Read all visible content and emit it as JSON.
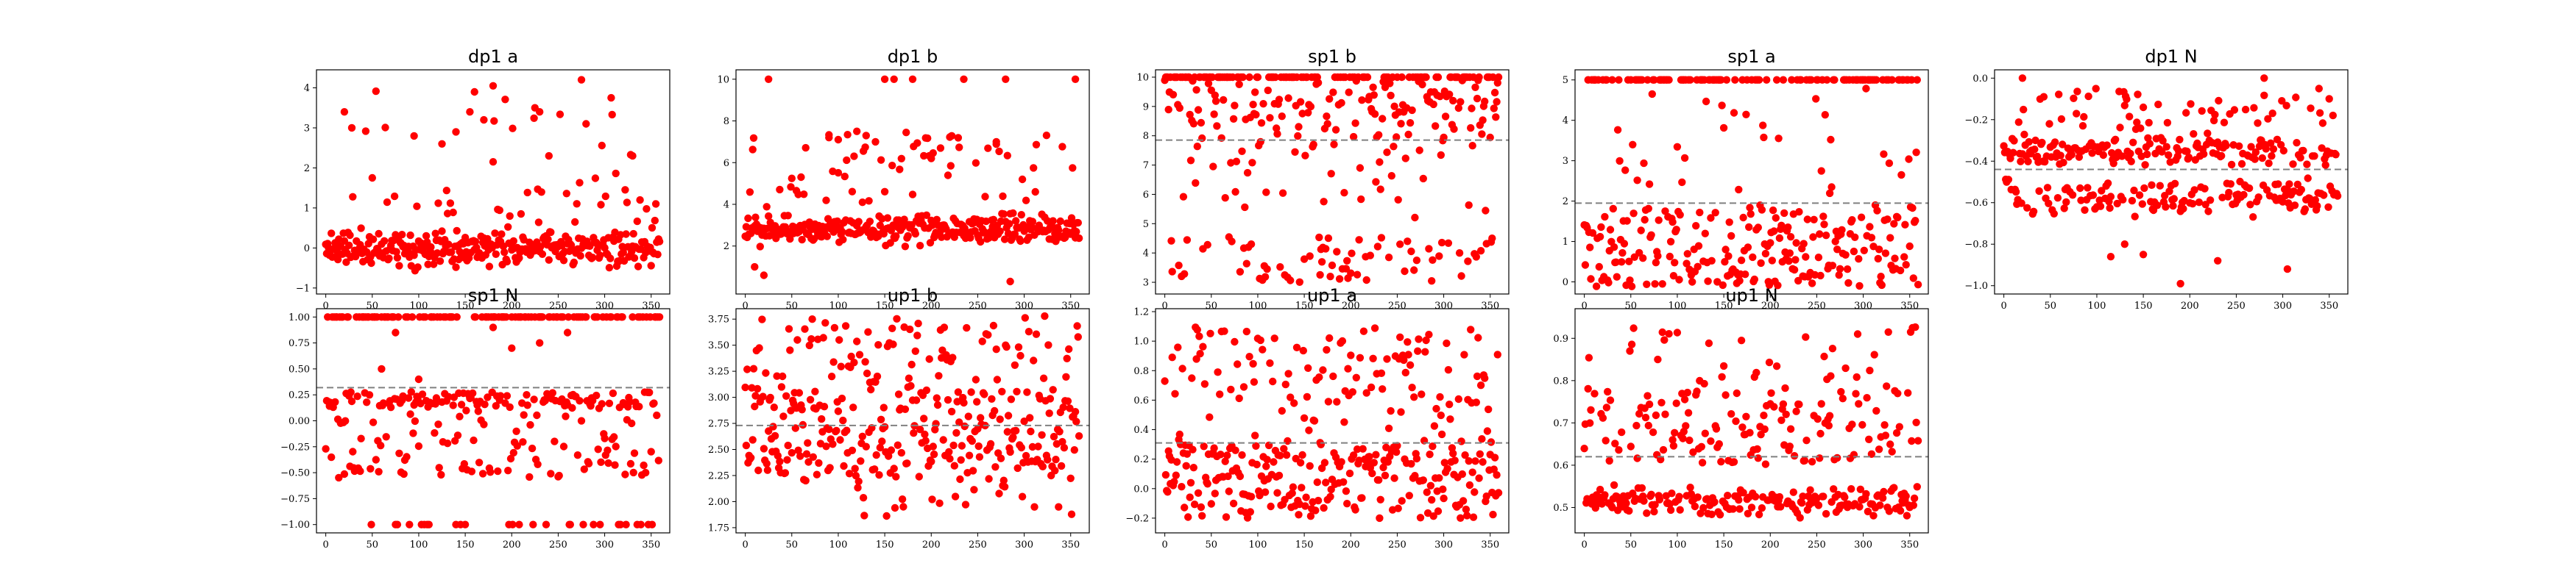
{
  "colors": {
    "points": "#ff0000",
    "refline": "#808080",
    "axis": "#000000"
  },
  "chart_data": [
    {
      "type": "scatter",
      "title": "dp1 a",
      "xlim": [
        -10,
        370
      ],
      "ylim": [
        -1.15,
        4.45
      ],
      "xticks": [
        0,
        50,
        100,
        150,
        200,
        250,
        300,
        350
      ],
      "yticks": [
        -1,
        0,
        1,
        2,
        3,
        4
      ],
      "refline": null,
      "n": 360,
      "seed": 11,
      "bands": [
        {
          "w": 0.88,
          "lo": -0.6,
          "hi": 0.6,
          "g": true
        },
        {
          "w": 0.08,
          "lo": 0.6,
          "hi": 2.4
        },
        {
          "w": 0.04,
          "lo": 2.4,
          "hi": 4.15
        }
      ],
      "x": [
        20,
        95,
        125,
        140,
        155,
        160,
        170,
        180,
        225,
        230,
        240,
        275,
        280,
        330
      ],
      "y": [
        3.4,
        2.8,
        2.6,
        2.9,
        3.4,
        3.9,
        3.2,
        4.05,
        3.5,
        3.4,
        2.3,
        4.2,
        3.1,
        2.3
      ]
    },
    {
      "type": "scatter",
      "title": "dp1 b",
      "xlim": [
        -10,
        370
      ],
      "ylim": [
        -0.3,
        10.45
      ],
      "xticks": [
        0,
        50,
        100,
        150,
        200,
        250,
        300,
        350
      ],
      "yticks": [
        2,
        4,
        6,
        8,
        10
      ],
      "refline": null,
      "n": 360,
      "seed": 23,
      "bands": [
        {
          "w": 0.85,
          "lo": 1.8,
          "hi": 3.8,
          "g": true
        },
        {
          "w": 0.15,
          "lo": 3.8,
          "hi": 7.5
        }
      ],
      "x": [
        25,
        150,
        160,
        180,
        235,
        280,
        355,
        90,
        100,
        120,
        130,
        140,
        200,
        210,
        270,
        10,
        285,
        20
      ],
      "y": [
        10,
        10,
        10,
        10,
        10,
        10,
        10,
        7.2,
        7.1,
        7.5,
        7.3,
        7.0,
        6.2,
        6.7,
        7.0,
        1.0,
        0.3,
        0.6
      ]
    },
    {
      "type": "scatter",
      "title": "sp1 b",
      "xlim": [
        -10,
        370
      ],
      "ylim": [
        2.6,
        10.25
      ],
      "xticks": [
        0,
        50,
        100,
        150,
        200,
        250,
        300,
        350
      ],
      "yticks": [
        3,
        4,
        5,
        6,
        7,
        8,
        9,
        10
      ],
      "refline": 7.85,
      "n": 360,
      "seed": 37,
      "bands": [
        {
          "w": 0.33,
          "lo": 10,
          "hi": 10
        },
        {
          "w": 0.35,
          "lo": 7.9,
          "hi": 9.9
        },
        {
          "w": 0.12,
          "lo": 5.0,
          "hi": 7.9
        },
        {
          "w": 0.2,
          "lo": 3.0,
          "hi": 4.6
        }
      ],
      "x": [],
      "y": []
    },
    {
      "type": "scatter",
      "title": "sp1 a",
      "xlim": [
        -10,
        370
      ],
      "ylim": [
        -0.3,
        5.25
      ],
      "xticks": [
        0,
        50,
        100,
        150,
        200,
        250,
        300,
        350
      ],
      "yticks": [
        0,
        1,
        2,
        3,
        4,
        5
      ],
      "refline": 1.95,
      "n": 360,
      "seed": 41,
      "bands": [
        {
          "w": 0.28,
          "lo": 5,
          "hi": 5
        },
        {
          "w": 0.36,
          "lo": -0.15,
          "hi": 0.9
        },
        {
          "w": 0.28,
          "lo": 0.9,
          "hi": 1.9
        },
        {
          "w": 0.08,
          "lo": 2.0,
          "hi": 4.8
        }
      ],
      "x": [],
      "y": []
    },
    {
      "type": "scatter",
      "title": "dp1 N",
      "xlim": [
        -10,
        370
      ],
      "ylim": [
        -1.04,
        0.04
      ],
      "xticks": [
        0,
        50,
        100,
        150,
        200,
        250,
        300,
        350
      ],
      "yticks": [
        -1.0,
        -0.8,
        -0.6,
        -0.4,
        -0.2,
        0.0
      ],
      "refline": -0.44,
      "n": 360,
      "seed": 53,
      "bands": [
        {
          "w": 0.45,
          "lo": -0.45,
          "hi": -0.25,
          "g": true
        },
        {
          "w": 0.42,
          "lo": -0.7,
          "hi": -0.45,
          "g": true
        },
        {
          "w": 0.13,
          "lo": -0.25,
          "hi": -0.05
        }
      ],
      "x": [
        20,
        190,
        280,
        305,
        115,
        230,
        130,
        150
      ],
      "y": [
        0.0,
        -0.99,
        0.0,
        -0.92,
        -0.86,
        -0.88,
        -0.8,
        -0.85
      ]
    },
    {
      "type": "scatter",
      "title": "sp1 N",
      "xlim": [
        -10,
        370
      ],
      "ylim": [
        -1.08,
        1.08
      ],
      "xticks": [
        0,
        50,
        100,
        150,
        200,
        250,
        300,
        350
      ],
      "yticks": [
        -1.0,
        -0.75,
        -0.5,
        -0.25,
        0.0,
        0.25,
        0.5,
        0.75,
        1.0
      ],
      "refline": 0.32,
      "n": 360,
      "seed": 67,
      "bands": [
        {
          "w": 0.38,
          "lo": 1,
          "hi": 1
        },
        {
          "w": 0.09,
          "lo": -1,
          "hi": -1
        },
        {
          "w": 0.28,
          "lo": 0.12,
          "hi": 0.28
        },
        {
          "w": 0.25,
          "lo": -0.55,
          "hi": 0.1
        }
      ],
      "x": [
        60,
        75,
        100,
        180,
        200,
        230,
        260
      ],
      "y": [
        0.5,
        0.85,
        0.4,
        0.9,
        0.7,
        0.75,
        0.85
      ]
    },
    {
      "type": "scatter",
      "title": "up1 b",
      "xlim": [
        -10,
        370
      ],
      "ylim": [
        1.7,
        3.85
      ],
      "xticks": [
        0,
        50,
        100,
        150,
        200,
        250,
        300,
        350
      ],
      "yticks": [
        1.75,
        2.0,
        2.25,
        2.5,
        2.75,
        3.0,
        3.25,
        3.5,
        3.75
      ],
      "refline": 2.73,
      "n": 360,
      "seed": 79,
      "bands": [
        {
          "w": 0.55,
          "lo": 2.2,
          "hi": 3.1
        },
        {
          "w": 0.3,
          "lo": 1.85,
          "hi": 3.6
        },
        {
          "w": 0.15,
          "lo": 3.1,
          "hi": 3.78
        }
      ],
      "x": [],
      "y": []
    },
    {
      "type": "scatter",
      "title": "up1 a",
      "xlim": [
        -10,
        370
      ],
      "ylim": [
        -0.3,
        1.22
      ],
      "xticks": [
        0,
        50,
        100,
        150,
        200,
        250,
        300,
        350
      ],
      "yticks": [
        -0.2,
        0.0,
        0.2,
        0.4,
        0.6,
        0.8,
        1.0,
        1.2
      ],
      "refline": 0.31,
      "n": 360,
      "seed": 83,
      "bands": [
        {
          "w": 0.68,
          "lo": -0.2,
          "hi": 0.3
        },
        {
          "w": 0.22,
          "lo": 0.6,
          "hi": 1.1
        },
        {
          "w": 0.1,
          "lo": 0.3,
          "hi": 0.6
        }
      ],
      "x": [],
      "y": []
    },
    {
      "type": "scatter",
      "title": "up1 N",
      "xlim": [
        -10,
        370
      ],
      "ylim": [
        0.44,
        0.97
      ],
      "xticks": [
        0,
        50,
        100,
        150,
        200,
        250,
        300,
        350
      ],
      "yticks": [
        0.5,
        0.6,
        0.7,
        0.8,
        0.9
      ],
      "refline": 0.62,
      "n": 360,
      "seed": 97,
      "bands": [
        {
          "w": 0.5,
          "lo": 0.47,
          "hi": 0.56,
          "g": true
        },
        {
          "w": 0.4,
          "lo": 0.6,
          "hi": 0.78
        },
        {
          "w": 0.1,
          "lo": 0.78,
          "hi": 0.93
        }
      ],
      "x": [],
      "y": []
    }
  ]
}
